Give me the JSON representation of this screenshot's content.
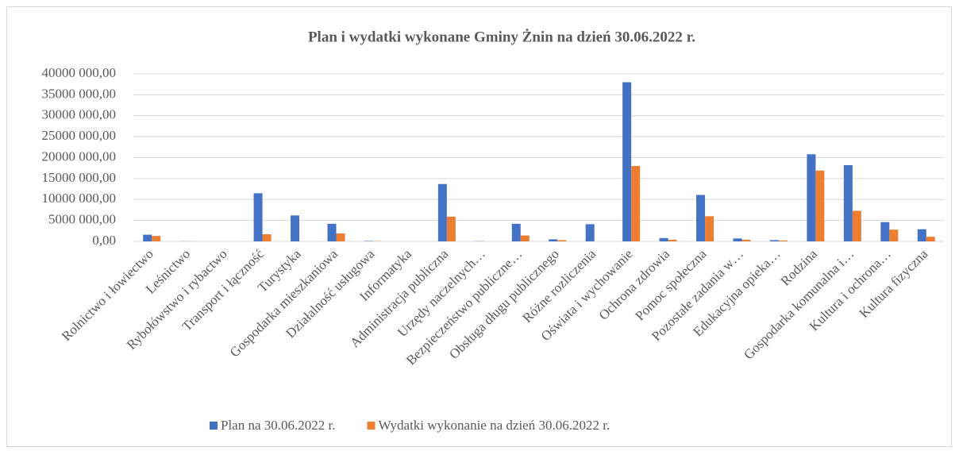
{
  "chart_data": {
    "type": "bar",
    "title": "Plan i wydatki wykonane Gminy Żnin na dzień 30.06.2022 r.",
    "categories": [
      "Rolnictwo i łowiectwo",
      "Leśnictwo",
      "Rybołówstwo i rybactwo",
      "Transport i łączność",
      "Turystyka",
      "Gospodarka mieszkaniowa",
      "Działalność usługowa",
      "Informatyka",
      "Administracja publiczna",
      "Urzędy naczelnych…",
      "Bezpieczeństwo publiczne…",
      "Obsługa długu publicznego",
      "Różne rozliczenia",
      "Oświata i wychowanie",
      "Ochrona zdrowia",
      "Pomoc społeczna",
      "Pozostałe zadania w…",
      "Edukacyjna opieka…",
      "Rodzina",
      "Gospodarka komunalna i…",
      "Kultura i ochrona…",
      "Kultura fizyczna"
    ],
    "series": [
      {
        "name": "Plan na 30.06.2022 r.",
        "color": "#4472c4",
        "values": [
          1600000,
          20000,
          0,
          11500000,
          6200000,
          4200000,
          100000,
          0,
          13700000,
          50000,
          4200000,
          500000,
          4100000,
          38000000,
          800000,
          11100000,
          700000,
          300000,
          20800000,
          18200000,
          4600000,
          2900000
        ]
      },
      {
        "name": "Wydatki wykonanie na dzień 30.06.2022 r.",
        "color": "#ed7d31",
        "values": [
          1300000,
          10000,
          0,
          1700000,
          0,
          1900000,
          50000,
          0,
          5900000,
          0,
          1400000,
          300000,
          0,
          18000000,
          400000,
          6000000,
          400000,
          200000,
          16900000,
          7300000,
          2800000,
          1100000
        ]
      }
    ],
    "ylim": [
      0,
      40000000
    ],
    "yticks": [
      {
        "value": 0,
        "label": "0,00"
      },
      {
        "value": 5000000,
        "label": "5000 000,00"
      },
      {
        "value": 10000000,
        "label": "10000 000,00"
      },
      {
        "value": 15000000,
        "label": "15000 000,00"
      },
      {
        "value": 20000000,
        "label": "20000 000,00"
      },
      {
        "value": 25000000,
        "label": "25000 000,00"
      },
      {
        "value": 30000000,
        "label": "30000 000,00"
      },
      {
        "value": 35000000,
        "label": "35000 000,00"
      },
      {
        "value": 40000000,
        "label": "40000 000,00"
      }
    ],
    "grid": true,
    "legend": "bottom"
  }
}
